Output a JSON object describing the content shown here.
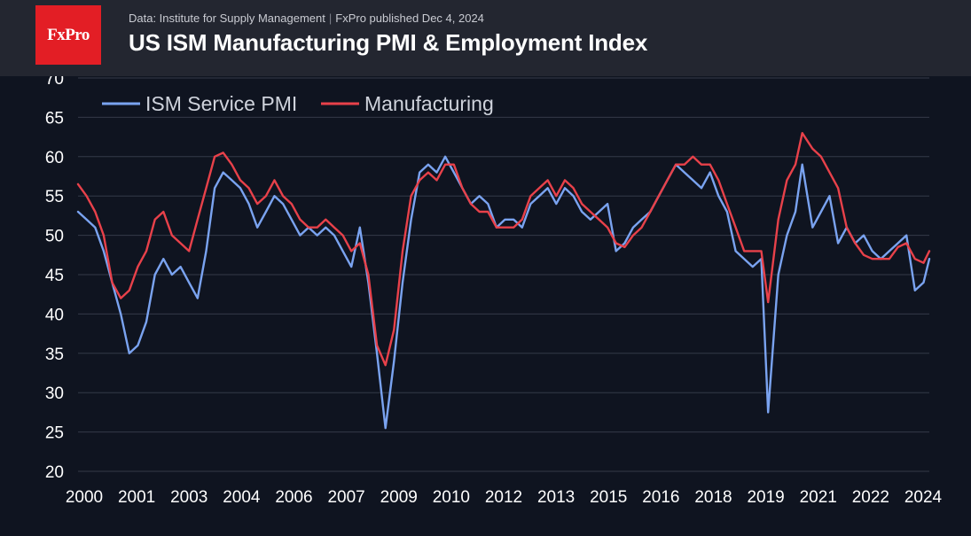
{
  "brand": {
    "logo_text": "FxPro",
    "accent": "#e31e25"
  },
  "header": {
    "source_left": "Data: Institute for Supply Management",
    "source_right": "FxPro published Dec 4, 2024",
    "title": "US ISM Manufacturing PMI & Employment Index"
  },
  "colors": {
    "background": "#0f1420",
    "header_bg": "#232630",
    "grid": "#343a48",
    "series_1": "#7aa3f0",
    "series_2": "#e8414a"
  },
  "chart_data": {
    "type": "line",
    "title": "US ISM Manufacturing PMI & Employment Index",
    "xlabel": "",
    "ylabel": "",
    "ylim": [
      20,
      70
    ],
    "yticks": [
      20,
      25,
      30,
      35,
      40,
      45,
      50,
      55,
      60,
      65,
      70
    ],
    "xlim": [
      2000.0,
      2024.92
    ],
    "xtick_labels": [
      "2000",
      "2001",
      "2003",
      "2004",
      "2006",
      "2007",
      "2009",
      "2010",
      "2012",
      "2013",
      "2015",
      "2016",
      "2018",
      "2019",
      "2021",
      "2022",
      "2024"
    ],
    "grid": true,
    "legend": "top-left",
    "series": [
      {
        "name": "ISM Service PMI",
        "color": "#7aa3f0",
        "points": [
          [
            2000.0,
            53
          ],
          [
            2000.25,
            52
          ],
          [
            2000.5,
            51
          ],
          [
            2000.75,
            48
          ],
          [
            2001.0,
            44
          ],
          [
            2001.25,
            40
          ],
          [
            2001.5,
            35
          ],
          [
            2001.75,
            36
          ],
          [
            2002.0,
            39
          ],
          [
            2002.25,
            45
          ],
          [
            2002.5,
            47
          ],
          [
            2002.75,
            45
          ],
          [
            2003.0,
            46
          ],
          [
            2003.25,
            44
          ],
          [
            2003.5,
            42
          ],
          [
            2003.75,
            48
          ],
          [
            2004.0,
            56
          ],
          [
            2004.25,
            58
          ],
          [
            2004.5,
            57
          ],
          [
            2004.75,
            56
          ],
          [
            2005.0,
            54
          ],
          [
            2005.25,
            51
          ],
          [
            2005.5,
            53
          ],
          [
            2005.75,
            55
          ],
          [
            2006.0,
            54
          ],
          [
            2006.25,
            52
          ],
          [
            2006.5,
            50
          ],
          [
            2006.75,
            51
          ],
          [
            2007.0,
            50
          ],
          [
            2007.25,
            51
          ],
          [
            2007.5,
            50
          ],
          [
            2007.75,
            48
          ],
          [
            2008.0,
            46
          ],
          [
            2008.25,
            51
          ],
          [
            2008.5,
            44
          ],
          [
            2008.75,
            35
          ],
          [
            2009.0,
            25.5
          ],
          [
            2009.25,
            34
          ],
          [
            2009.5,
            44
          ],
          [
            2009.75,
            52
          ],
          [
            2010.0,
            58
          ],
          [
            2010.25,
            59
          ],
          [
            2010.5,
            58
          ],
          [
            2010.75,
            60
          ],
          [
            2011.0,
            58
          ],
          [
            2011.25,
            56
          ],
          [
            2011.5,
            54
          ],
          [
            2011.75,
            55
          ],
          [
            2012.0,
            54
          ],
          [
            2012.25,
            51
          ],
          [
            2012.5,
            52
          ],
          [
            2012.75,
            52
          ],
          [
            2013.0,
            51
          ],
          [
            2013.25,
            54
          ],
          [
            2013.5,
            55
          ],
          [
            2013.75,
            56
          ],
          [
            2014.0,
            54
          ],
          [
            2014.25,
            56
          ],
          [
            2014.5,
            55
          ],
          [
            2014.75,
            53
          ],
          [
            2015.0,
            52
          ],
          [
            2015.25,
            53
          ],
          [
            2015.5,
            54
          ],
          [
            2015.75,
            48
          ],
          [
            2016.0,
            49
          ],
          [
            2016.25,
            51
          ],
          [
            2016.5,
            52
          ],
          [
            2016.75,
            53
          ],
          [
            2017.0,
            55
          ],
          [
            2017.25,
            57
          ],
          [
            2017.5,
            59
          ],
          [
            2017.75,
            58
          ],
          [
            2018.0,
            57
          ],
          [
            2018.25,
            56
          ],
          [
            2018.5,
            58
          ],
          [
            2018.75,
            55
          ],
          [
            2019.0,
            53
          ],
          [
            2019.25,
            48
          ],
          [
            2019.5,
            47
          ],
          [
            2019.75,
            46
          ],
          [
            2020.0,
            47
          ],
          [
            2020.2,
            27.5
          ],
          [
            2020.5,
            45
          ],
          [
            2020.75,
            50
          ],
          [
            2021.0,
            53
          ],
          [
            2021.2,
            59
          ],
          [
            2021.5,
            51
          ],
          [
            2021.75,
            53
          ],
          [
            2022.0,
            55
          ],
          [
            2022.25,
            49
          ],
          [
            2022.5,
            51
          ],
          [
            2022.75,
            49
          ],
          [
            2023.0,
            50
          ],
          [
            2023.25,
            48
          ],
          [
            2023.5,
            47
          ],
          [
            2023.75,
            48
          ],
          [
            2024.0,
            49
          ],
          [
            2024.25,
            50
          ],
          [
            2024.5,
            43
          ],
          [
            2024.75,
            44
          ],
          [
            2024.92,
            47
          ]
        ]
      },
      {
        "name": "Manufacturing",
        "color": "#e8414a",
        "points": [
          [
            2000.0,
            56.5
          ],
          [
            2000.25,
            55
          ],
          [
            2000.5,
            53
          ],
          [
            2000.75,
            50
          ],
          [
            2001.0,
            44
          ],
          [
            2001.25,
            42
          ],
          [
            2001.5,
            43
          ],
          [
            2001.75,
            46
          ],
          [
            2002.0,
            48
          ],
          [
            2002.25,
            52
          ],
          [
            2002.5,
            53
          ],
          [
            2002.75,
            50
          ],
          [
            2003.0,
            49
          ],
          [
            2003.25,
            48
          ],
          [
            2003.5,
            52
          ],
          [
            2003.75,
            56
          ],
          [
            2004.0,
            60
          ],
          [
            2004.25,
            60.5
          ],
          [
            2004.5,
            59
          ],
          [
            2004.75,
            57
          ],
          [
            2005.0,
            56
          ],
          [
            2005.25,
            54
          ],
          [
            2005.5,
            55
          ],
          [
            2005.75,
            57
          ],
          [
            2006.0,
            55
          ],
          [
            2006.25,
            54
          ],
          [
            2006.5,
            52
          ],
          [
            2006.75,
            51
          ],
          [
            2007.0,
            51
          ],
          [
            2007.25,
            52
          ],
          [
            2007.5,
            51
          ],
          [
            2007.75,
            50
          ],
          [
            2008.0,
            48
          ],
          [
            2008.25,
            49
          ],
          [
            2008.5,
            45
          ],
          [
            2008.75,
            36
          ],
          [
            2009.0,
            33.5
          ],
          [
            2009.25,
            38
          ],
          [
            2009.5,
            48
          ],
          [
            2009.75,
            55
          ],
          [
            2010.0,
            57
          ],
          [
            2010.25,
            58
          ],
          [
            2010.5,
            57
          ],
          [
            2010.75,
            59
          ],
          [
            2011.0,
            59
          ],
          [
            2011.25,
            56
          ],
          [
            2011.5,
            54
          ],
          [
            2011.75,
            53
          ],
          [
            2012.0,
            53
          ],
          [
            2012.25,
            51
          ],
          [
            2012.5,
            51
          ],
          [
            2012.75,
            51
          ],
          [
            2013.0,
            52
          ],
          [
            2013.25,
            55
          ],
          [
            2013.5,
            56
          ],
          [
            2013.75,
            57
          ],
          [
            2014.0,
            55
          ],
          [
            2014.25,
            57
          ],
          [
            2014.5,
            56
          ],
          [
            2014.75,
            54
          ],
          [
            2015.0,
            53
          ],
          [
            2015.25,
            52
          ],
          [
            2015.5,
            51
          ],
          [
            2015.75,
            49
          ],
          [
            2016.0,
            48.5
          ],
          [
            2016.25,
            50
          ],
          [
            2016.5,
            51
          ],
          [
            2016.75,
            53
          ],
          [
            2017.0,
            55
          ],
          [
            2017.25,
            57
          ],
          [
            2017.5,
            59
          ],
          [
            2017.75,
            59
          ],
          [
            2018.0,
            60
          ],
          [
            2018.25,
            59
          ],
          [
            2018.5,
            59
          ],
          [
            2018.75,
            57
          ],
          [
            2019.0,
            54
          ],
          [
            2019.25,
            51
          ],
          [
            2019.5,
            48
          ],
          [
            2019.75,
            48
          ],
          [
            2020.0,
            48
          ],
          [
            2020.2,
            41.5
          ],
          [
            2020.5,
            52
          ],
          [
            2020.75,
            57
          ],
          [
            2021.0,
            59
          ],
          [
            2021.2,
            63
          ],
          [
            2021.5,
            61
          ],
          [
            2021.75,
            60
          ],
          [
            2022.0,
            58
          ],
          [
            2022.25,
            56
          ],
          [
            2022.5,
            51
          ],
          [
            2022.75,
            49
          ],
          [
            2023.0,
            47.5
          ],
          [
            2023.25,
            47
          ],
          [
            2023.5,
            47
          ],
          [
            2023.75,
            47
          ],
          [
            2024.0,
            48.5
          ],
          [
            2024.25,
            49
          ],
          [
            2024.5,
            47
          ],
          [
            2024.75,
            46.5
          ],
          [
            2024.92,
            48
          ]
        ]
      }
    ]
  }
}
